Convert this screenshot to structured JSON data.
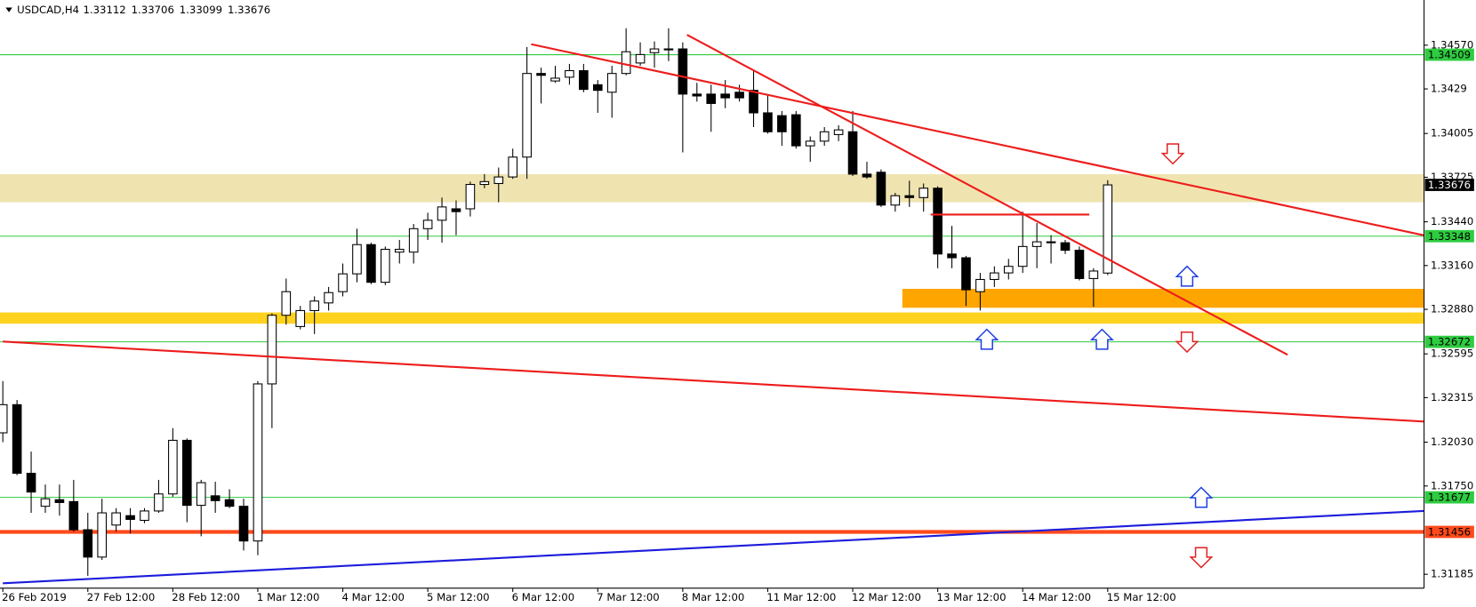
{
  "chart_data": {
    "type": "candlestick",
    "title": "USDCAD,H4",
    "categories": [
      "26 Feb 2019",
      null,
      null,
      null,
      null,
      null,
      "27 Feb 12:00",
      null,
      null,
      null,
      null,
      null,
      "28 Feb 12:00",
      null,
      null,
      null,
      null,
      null,
      "1 Mar 12:00",
      null,
      null,
      null,
      null,
      null,
      "4 Mar 12:00",
      null,
      null,
      null,
      null,
      null,
      "5 Mar 12:00",
      null,
      null,
      null,
      null,
      null,
      "6 Mar 12:00",
      null,
      null,
      null,
      null,
      null,
      "7 Mar 12:00",
      null,
      null,
      null,
      null,
      null,
      "8 Mar 12:00",
      null,
      null,
      null,
      null,
      null,
      "11 Mar 12:00",
      null,
      null,
      null,
      null,
      null,
      "12 Mar 12:00",
      null,
      null,
      null,
      null,
      null,
      "13 Mar 12:00",
      null,
      null,
      null,
      null,
      null,
      "14 Mar 12:00",
      null,
      null,
      null,
      null,
      null,
      "15 Mar 12:00"
    ],
    "open": [
      1.3209,
      1.3227,
      1.31831,
      1.3162,
      1.31662,
      1.3165,
      1.3147,
      1.31295,
      1.315,
      1.3156,
      1.3153,
      1.3159,
      1.31699,
      1.32042,
      1.31626,
      1.31687,
      1.31662,
      1.3162,
      1.31398,
      1.32403,
      1.32842,
      1.3277,
      1.32872,
      1.32921,
      1.32993,
      1.33107,
      1.33294,
      1.33053,
      1.33246,
      1.33246,
      1.33396,
      1.3345,
      1.33523,
      1.33523,
      1.33679,
      1.33685,
      1.33727,
      1.33854,
      1.34389,
      1.34341,
      1.34365,
      1.34407,
      1.34317,
      1.34269,
      1.34389,
      1.34456,
      1.34522,
      1.3454,
      1.34546,
      1.34257,
      1.34257,
      1.34257,
      1.34269,
      1.34281,
      1.34137,
      1.34119,
      1.34125,
      1.33926,
      1.33956,
      1.33998,
      1.34016,
      1.33745,
      1.33757,
      1.33547,
      1.33607,
      1.33595,
      1.33655,
      1.33234,
      1.3321,
      1.32993,
      1.33071,
      1.33113,
      1.33155,
      1.33282,
      1.33312,
      1.33306,
      1.33258,
      1.33077,
      1.33112
    ],
    "high": [
      1.32421,
      1.323,
      1.3197,
      1.31759,
      1.31759,
      1.31789,
      1.31578,
      1.31668,
      1.31608,
      1.31608,
      1.31608,
      1.31789,
      1.3212,
      1.32054,
      1.31789,
      1.31777,
      1.31729,
      1.31668,
      1.32421,
      1.32854,
      1.33077,
      1.32902,
      1.32963,
      1.33023,
      1.33173,
      1.33396,
      1.33306,
      1.33282,
      1.33324,
      1.33426,
      1.33498,
      1.33595,
      1.33577,
      1.33697,
      1.33745,
      1.33787,
      1.33908,
      1.34558,
      1.34426,
      1.34438,
      1.3445,
      1.3445,
      1.34347,
      1.34438,
      1.34678,
      1.34588,
      1.34594,
      1.34678,
      1.34588,
      1.34329,
      1.34317,
      1.34347,
      1.34317,
      1.34407,
      1.34257,
      1.34149,
      1.34149,
      1.33986,
      1.34046,
      1.34058,
      1.34149,
      1.33824,
      1.33775,
      1.33625,
      1.33703,
      1.33685,
      1.33667,
      1.33414,
      1.33222,
      1.33113,
      1.33155,
      1.33203,
      1.33505,
      1.33432,
      1.33354,
      1.33324,
      1.33282,
      1.33143,
      1.33706
    ],
    "low": [
      1.3203,
      1.31819,
      1.31578,
      1.31578,
      1.3156,
      1.31458,
      1.31175,
      1.31277,
      1.31458,
      1.31446,
      1.31512,
      1.31578,
      1.31681,
      1.31518,
      1.31428,
      1.31578,
      1.31608,
      1.31337,
      1.31307,
      1.3212,
      1.32782,
      1.32752,
      1.32722,
      1.32872,
      1.32963,
      1.33053,
      1.33041,
      1.33035,
      1.33173,
      1.33173,
      1.33324,
      1.33306,
      1.33354,
      1.33474,
      1.33655,
      1.33565,
      1.33715,
      1.33715,
      1.34197,
      1.34329,
      1.34317,
      1.34269,
      1.34137,
      1.34106,
      1.34377,
      1.34438,
      1.34426,
      1.34468,
      1.33884,
      1.34209,
      1.34016,
      1.34167,
      1.34209,
      1.34046,
      1.34004,
      1.33926,
      1.33908,
      1.33824,
      1.33926,
      1.33956,
      1.33733,
      1.33715,
      1.33535,
      1.33505,
      1.33535,
      1.33505,
      1.33143,
      1.33143,
      1.32902,
      1.32872,
      1.33023,
      1.33071,
      1.33113,
      1.33143,
      1.33173,
      1.33234,
      1.33065,
      1.32896,
      1.33099
    ],
    "close": [
      1.3227,
      1.31831,
      1.31711,
      1.31668,
      1.31644,
      1.3147,
      1.31295,
      1.31578,
      1.31578,
      1.31536,
      1.3159,
      1.31699,
      1.32042,
      1.31626,
      1.31771,
      1.31656,
      1.3162,
      1.31398,
      1.32403,
      1.32842,
      1.32993,
      1.32872,
      1.32933,
      1.32987,
      1.33107,
      1.33294,
      1.33053,
      1.33264,
      1.33264,
      1.33396,
      1.3345,
      1.33535,
      1.33505,
      1.33679,
      1.33697,
      1.33727,
      1.33854,
      1.34389,
      1.34377,
      1.34359,
      1.34407,
      1.34287,
      1.34281,
      1.34389,
      1.34528,
      1.3451,
      1.34546,
      1.34546,
      1.34257,
      1.34245,
      1.34197,
      1.34233,
      1.34233,
      1.34137,
      1.34016,
      1.34016,
      1.33926,
      1.33956,
      1.34016,
      1.34028,
      1.33745,
      1.33727,
      1.33547,
      1.33607,
      1.33595,
      1.33655,
      1.33234,
      1.3321,
      1.33005,
      1.33071,
      1.33113,
      1.33155,
      1.33282,
      1.33312,
      1.33306,
      1.33258,
      1.33077,
      1.33125,
      1.33676
    ],
    "up_color": "#ffffff",
    "down_color": "#000000",
    "ylim": [
      1.31096,
      1.34859
    ],
    "yticks": [
      {
        "value": 1.3457,
        "label": "1.34570"
      },
      1.3429,
      1.34005,
      1.33725,
      {
        "value": 1.3344,
        "label": "1.33440"
      },
      {
        "value": 1.3316,
        "label": "1.33160"
      },
      {
        "value": 1.3288,
        "label": "1.32880"
      },
      1.32595,
      1.32315,
      {
        "value": 1.3203,
        "label": "1.32030"
      },
      {
        "value": 1.3175,
        "label": "1.31750"
      },
      1.31185
    ],
    "levels": [
      {
        "value": 1.34509,
        "color": "#2ecc40"
      },
      {
        "value": 1.33348,
        "color": "#2ecc40"
      },
      {
        "value": 1.32672,
        "color": "#2ecc40"
      },
      {
        "value": 1.31677,
        "color": "#2ecc40"
      },
      {
        "value": 1.31456,
        "color": "#ff4a1c"
      }
    ],
    "zones": [
      {
        "from": 1.33565,
        "to": 1.33745,
        "color": "#efe4b0"
      },
      {
        "from": 1.32788,
        "to": 1.3286,
        "color": "#ffd21f"
      },
      {
        "from": 1.3289,
        "to": 1.33011,
        "start": 63.5,
        "color": "#ffa500"
      }
    ],
    "trendlines": [
      {
        "x": [
          37.3,
          100.3
        ],
        "y": [
          1.34576,
          1.33354
        ],
        "color": "#ee1c1c"
      },
      {
        "x": [
          48.3,
          90.7
        ],
        "y": [
          1.34636,
          1.32589
        ],
        "color": "#ee1c1c"
      },
      {
        "x": [
          0,
          100.3
        ],
        "y": [
          1.32674,
          1.32162
        ],
        "color": "#ee1c1c"
      },
      {
        "x": [
          0,
          100.3
        ],
        "y": [
          1.31127,
          1.3159
        ],
        "color": "#1c1cdd"
      },
      {
        "x": [
          65.5,
          76.7
        ],
        "y": [
          1.33486,
          1.33486
        ],
        "color": "#ee1c1c"
      }
    ],
    "grid": false
  }
}
